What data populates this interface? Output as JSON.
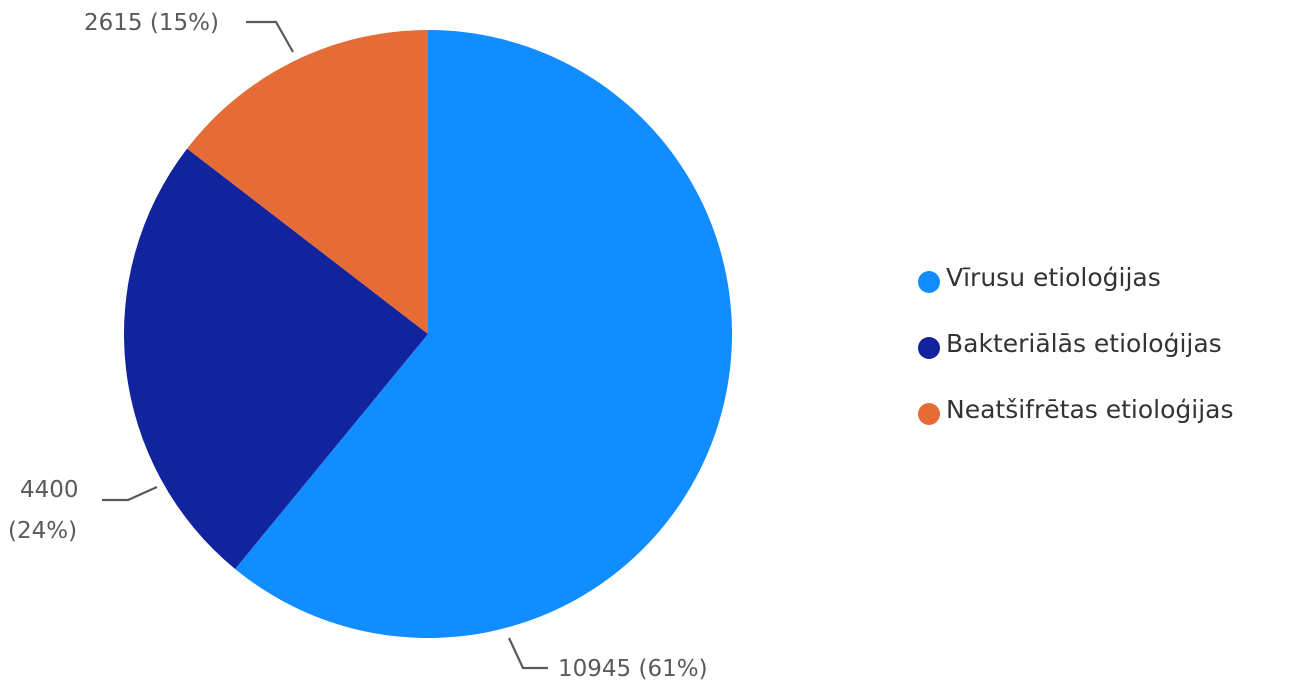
{
  "chart_data": {
    "type": "pie",
    "slices": [
      {
        "name": "Vīrusu etioloģijas",
        "value": 10945,
        "percent_label": "61%",
        "color": "#118dff"
      },
      {
        "name": "Bakteriālās etioloģijas",
        "value": 4400,
        "percent_label": "24%",
        "color": "#12239e"
      },
      {
        "name": "Neatšifrētas etioloģijas",
        "value": 2615,
        "percent_label": "15%",
        "color": "#e66c37"
      }
    ],
    "data_labels": [
      "10945 (61%)",
      "4400",
      "(24%)",
      "2615 (15%)"
    ],
    "legend_position": "right",
    "start_angle": "12 o'clock",
    "direction": "clockwise"
  }
}
